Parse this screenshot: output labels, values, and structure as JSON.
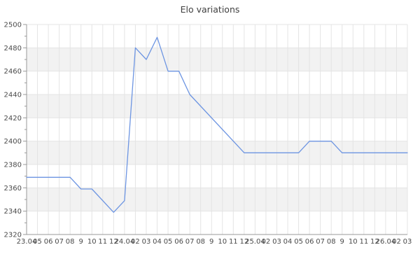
{
  "chart_data": {
    "type": "line",
    "title": "Elo variations",
    "y_axis": {
      "min": 2320,
      "max": 2500,
      "step": 20,
      "minor_step": 10,
      "tick_labels": [
        "2320",
        "2340",
        "2360",
        "2380",
        "2400",
        "2420",
        "2440",
        "2460",
        "2480",
        "2500"
      ]
    },
    "x_axis": {
      "tick_count": 36,
      "labels": [
        "23.04",
        "05",
        "06",
        "07",
        "08",
        "9",
        "10",
        "11",
        "12",
        "24.04",
        "02",
        "03",
        "04",
        "05",
        "06",
        "07",
        "08",
        "9",
        "10",
        "11",
        "12",
        "25.04",
        "02",
        "03",
        "04",
        "05",
        "06",
        "07",
        "08",
        "9",
        "10",
        "11",
        "12",
        "26.04",
        "02",
        "03"
      ]
    },
    "bands": [
      [
        2340,
        2360
      ],
      [
        2380,
        2400
      ],
      [
        2420,
        2440
      ],
      [
        2460,
        2480
      ]
    ],
    "series": [
      {
        "name": "Elo",
        "color": "#6d95e2",
        "points": [
          [
            0,
            2369
          ],
          [
            4,
            2369
          ],
          [
            5,
            2359
          ],
          [
            6,
            2359
          ],
          [
            8,
            2339
          ],
          [
            9,
            2349
          ],
          [
            10,
            2480
          ],
          [
            11,
            2470
          ],
          [
            12,
            2489
          ],
          [
            13,
            2460
          ],
          [
            14,
            2460
          ],
          [
            15,
            2440
          ],
          [
            20,
            2390
          ],
          [
            25,
            2390
          ],
          [
            26,
            2400
          ],
          [
            28,
            2400
          ],
          [
            29,
            2390
          ],
          [
            35,
            2390
          ]
        ]
      }
    ],
    "colors": {
      "band": "#f2f2f2",
      "grid": "#e4e4e4",
      "axis": "#999999",
      "tick_text": "#4a4a4a",
      "title_text": "#3f3f3f",
      "background": "#ffffff"
    }
  }
}
